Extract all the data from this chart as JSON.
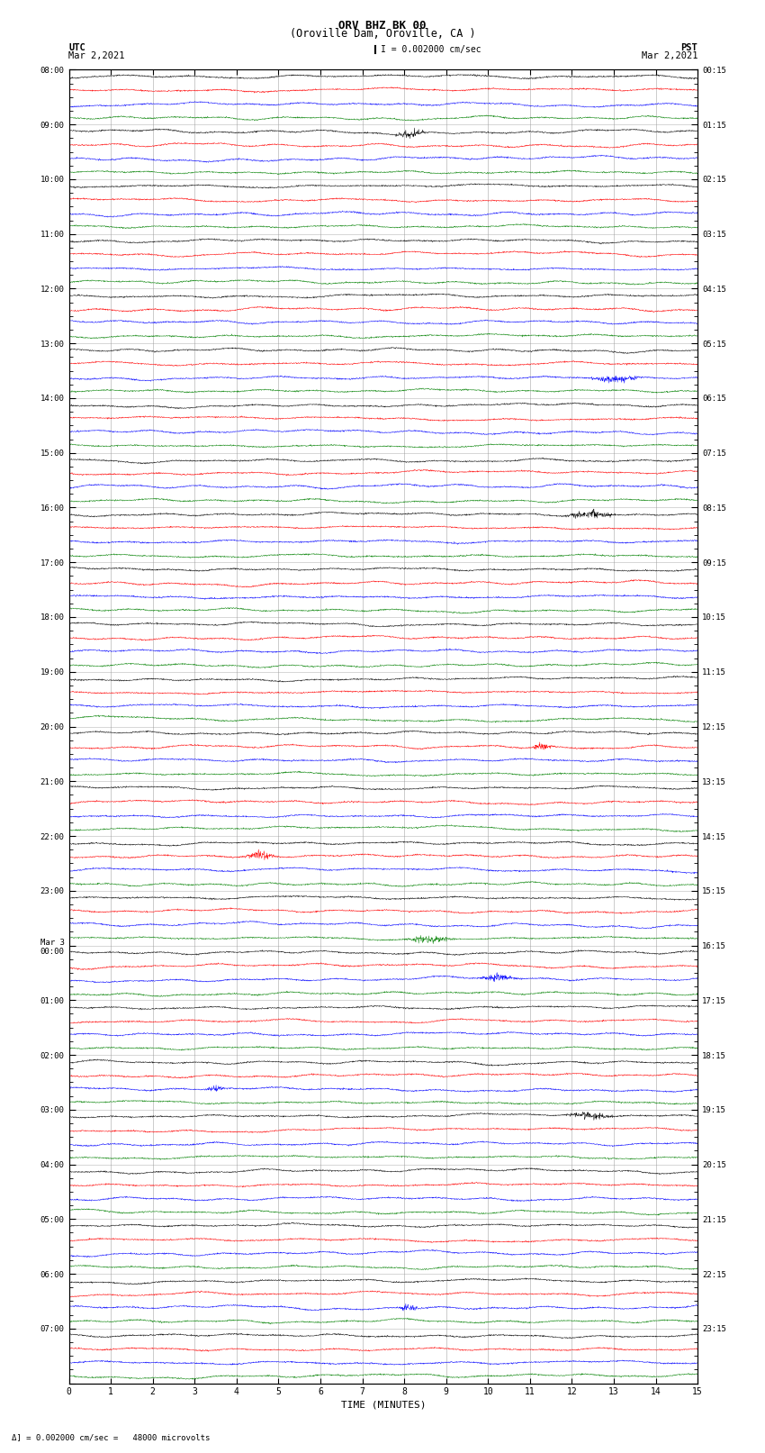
{
  "title_line1": "ORV BHZ BK 00",
  "title_line2": "(Oroville Dam, Oroville, CA )",
  "title_scale": "I = 0.002000 cm/sec",
  "label_left_header": "UTC",
  "label_left_date": "Mar 2,2021",
  "label_right_header": "PST",
  "label_right_date": "Mar 2,2021",
  "xlabel": "TIME (MINUTES)",
  "footer": "= 0.002000 cm/sec =   48000 microvolts",
  "bg_color": "#ffffff",
  "trace_colors": [
    "black",
    "red",
    "blue",
    "green"
  ],
  "grid_color": "#999999",
  "num_rows": 24,
  "minutes_per_row": 15,
  "traces_per_row": 4,
  "trace_amp_small": 0.06,
  "trace_amp_medium": 0.14,
  "left_time_labels": [
    "08:00",
    "09:00",
    "10:00",
    "11:00",
    "12:00",
    "13:00",
    "14:00",
    "15:00",
    "16:00",
    "17:00",
    "18:00",
    "19:00",
    "20:00",
    "21:00",
    "22:00",
    "23:00",
    "Mar 3\n00:00",
    "01:00",
    "02:00",
    "03:00",
    "04:00",
    "05:00",
    "06:00",
    "07:00"
  ],
  "right_time_labels": [
    "00:15",
    "01:15",
    "02:15",
    "03:15",
    "04:15",
    "05:15",
    "06:15",
    "07:15",
    "08:15",
    "09:15",
    "10:15",
    "11:15",
    "12:15",
    "13:15",
    "14:15",
    "15:15",
    "16:15",
    "17:15",
    "18:15",
    "19:15",
    "20:15",
    "21:15",
    "22:15",
    "23:15"
  ]
}
